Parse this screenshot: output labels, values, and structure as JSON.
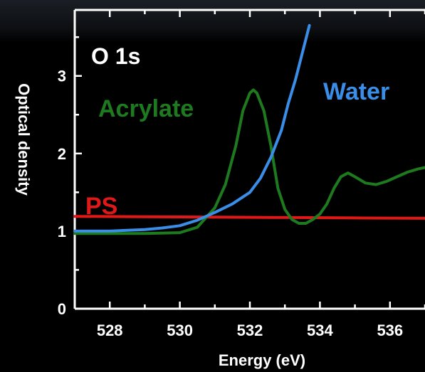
{
  "chart_data": {
    "type": "line",
    "panel_title": "O 1s",
    "xlabel": "Energy (eV)",
    "ylabel": "Optical density",
    "xlim": [
      527,
      537
    ],
    "ylim": [
      0,
      3.85
    ],
    "xticks": [
      528,
      530,
      532,
      534,
      536
    ],
    "yticks": [
      0,
      1,
      2,
      3
    ],
    "grid": false,
    "colors": {
      "ps": "#e01818",
      "acrylate": "#1e7a1e",
      "water": "#3a8ee8",
      "axes": "#ffffff",
      "background": "#000000"
    },
    "series": [
      {
        "name": "PS",
        "x": [
          527,
          529,
          531,
          533,
          535,
          537
        ],
        "y": [
          1.19,
          1.185,
          1.18,
          1.175,
          1.17,
          1.165
        ]
      },
      {
        "name": "Acrylate",
        "x": [
          527,
          528,
          529,
          530,
          530.5,
          531,
          531.3,
          531.6,
          531.8,
          532.0,
          532.1,
          532.2,
          532.4,
          532.6,
          532.8,
          533.0,
          533.2,
          533.4,
          533.6,
          533.8,
          534.0,
          534.2,
          534.4,
          534.6,
          534.8,
          535.0,
          535.3,
          535.6,
          535.9,
          536.2,
          536.5,
          536.8,
          537
        ],
        "y": [
          0.97,
          0.97,
          0.97,
          0.98,
          1.05,
          1.3,
          1.6,
          2.1,
          2.55,
          2.78,
          2.82,
          2.78,
          2.55,
          2.1,
          1.55,
          1.28,
          1.15,
          1.1,
          1.1,
          1.15,
          1.22,
          1.35,
          1.55,
          1.7,
          1.75,
          1.7,
          1.62,
          1.6,
          1.64,
          1.7,
          1.76,
          1.8,
          1.82
        ]
      },
      {
        "name": "Water",
        "x": [
          527,
          528,
          528.5,
          529,
          529.5,
          530,
          530.5,
          531,
          531.5,
          532,
          532.3,
          532.6,
          532.9,
          533.1,
          533.3,
          533.5,
          533.7
        ],
        "y": [
          1.0,
          1.0,
          1.01,
          1.02,
          1.04,
          1.07,
          1.14,
          1.24,
          1.35,
          1.5,
          1.68,
          1.95,
          2.3,
          2.65,
          2.95,
          3.3,
          3.65
        ]
      }
    ]
  }
}
